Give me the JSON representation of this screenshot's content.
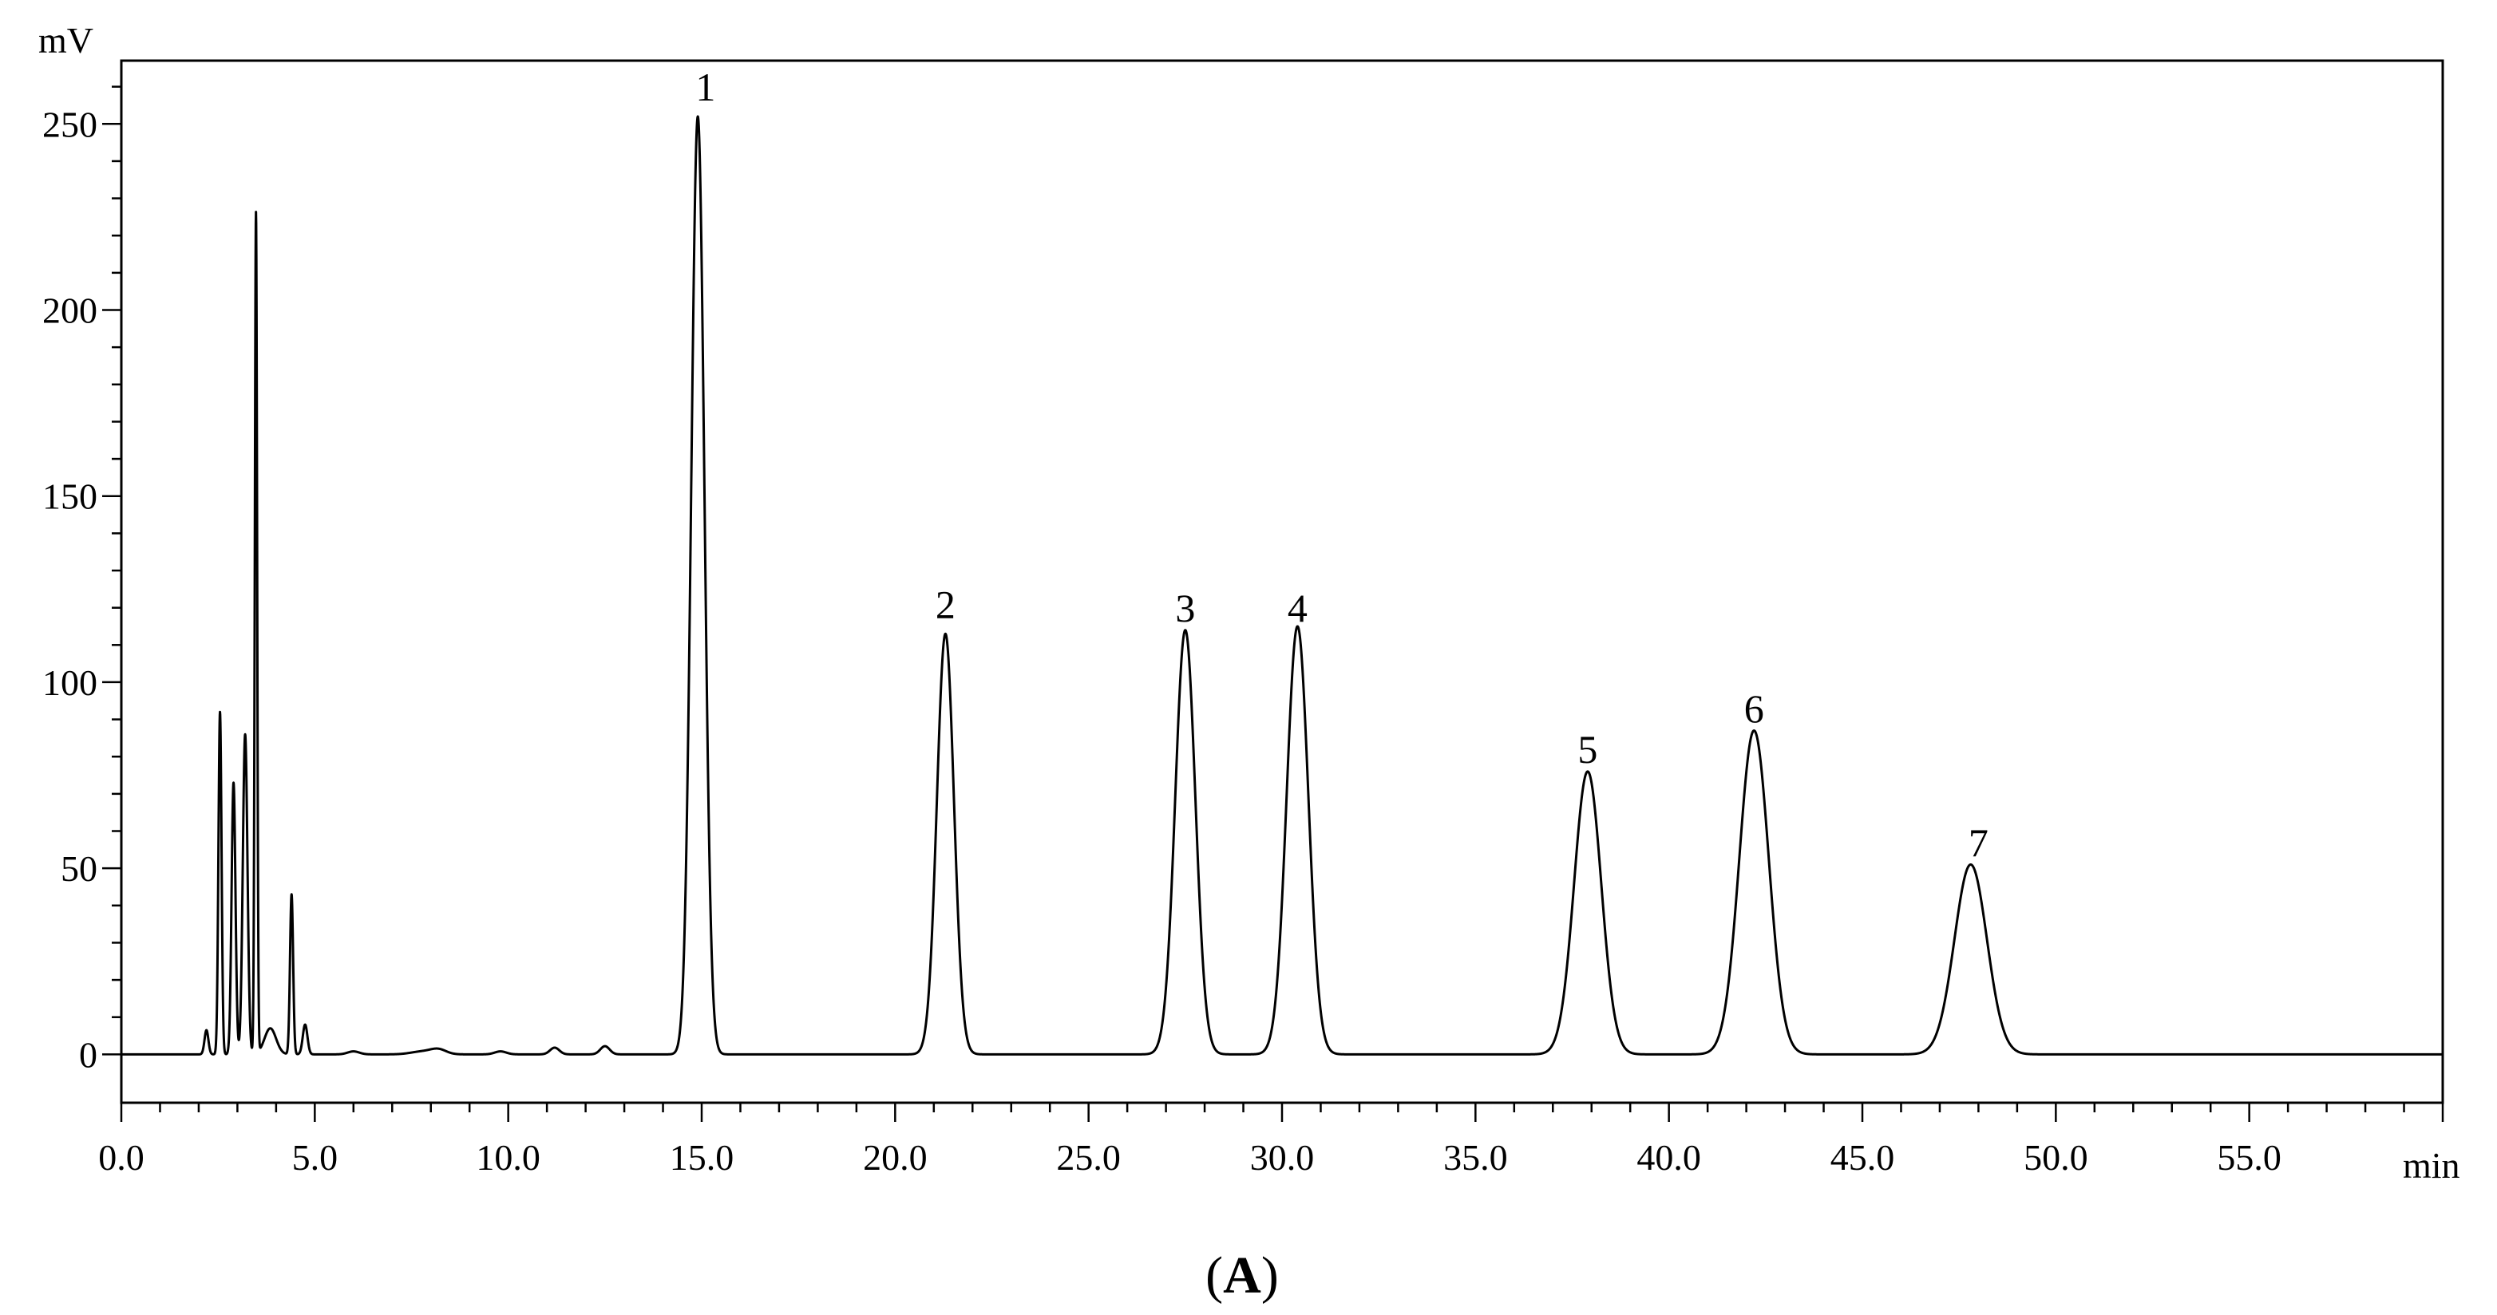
{
  "figure": {
    "panel_prefix": "(",
    "panel_letter": "A",
    "panel_suffix": ")"
  },
  "chart_data": {
    "type": "line",
    "title": "",
    "xlabel": "min",
    "ylabel": "mV",
    "xlim": [
      0,
      60
    ],
    "ylim": [
      -13,
      267
    ],
    "grid": false,
    "x_ticks": [
      0,
      5,
      10,
      15,
      20,
      25,
      30,
      35,
      40,
      45,
      50,
      55
    ],
    "x_tick_labels": [
      "0.0",
      "5.0",
      "10.0",
      "15.0",
      "20.0",
      "25.0",
      "30.0",
      "35.0",
      "40.0",
      "45.0",
      "50.0",
      "55.0"
    ],
    "y_ticks": [
      0,
      50,
      100,
      150,
      200,
      250
    ],
    "y_tick_labels": [
      "0",
      "50",
      "100",
      "150",
      "200",
      "250"
    ],
    "baseline": 0,
    "peaks": [
      {
        "x": 2.2,
        "y": 6.5,
        "width": 0.05
      },
      {
        "x": 2.55,
        "y": 92,
        "width": 0.04
      },
      {
        "x": 2.9,
        "y": 73,
        "width": 0.05
      },
      {
        "x": 3.2,
        "y": 86,
        "width": 0.06
      },
      {
        "x": 3.48,
        "y": 226,
        "width": 0.03
      },
      {
        "x": 3.85,
        "y": 7,
        "width": 0.15
      },
      {
        "x": 4.4,
        "y": 43,
        "width": 0.04
      },
      {
        "x": 4.75,
        "y": 8,
        "width": 0.06
      },
      {
        "x": 6.0,
        "y": 0.8,
        "width": 0.15
      },
      {
        "x": 7.8,
        "y": 0.8,
        "width": 0.3
      },
      {
        "x": 8.2,
        "y": 1.2,
        "width": 0.2
      },
      {
        "x": 9.8,
        "y": 0.8,
        "width": 0.15
      },
      {
        "x": 11.2,
        "y": 1.8,
        "width": 0.12
      },
      {
        "x": 12.5,
        "y": 2.2,
        "width": 0.12
      },
      {
        "x": 14.9,
        "y": 252,
        "width": 0.17
      },
      {
        "x": 21.3,
        "y": 113,
        "width": 0.22
      },
      {
        "x": 27.5,
        "y": 114,
        "width": 0.26
      },
      {
        "x": 30.4,
        "y": 115,
        "width": 0.28
      },
      {
        "x": 37.9,
        "y": 76,
        "width": 0.35
      },
      {
        "x": 42.2,
        "y": 87,
        "width": 0.38
      },
      {
        "x": 47.8,
        "y": 51,
        "width": 0.42
      }
    ],
    "annotations": [
      {
        "text": "1",
        "x": 15.1,
        "y": 255
      },
      {
        "text": "2",
        "x": 21.3,
        "y": 116
      },
      {
        "text": "3",
        "x": 27.5,
        "y": 115
      },
      {
        "text": "4",
        "x": 30.4,
        "y": 115
      },
      {
        "text": "5",
        "x": 37.9,
        "y": 77
      },
      {
        "text": "6",
        "x": 42.2,
        "y": 88
      },
      {
        "text": "7",
        "x": 48.0,
        "y": 52
      }
    ]
  }
}
